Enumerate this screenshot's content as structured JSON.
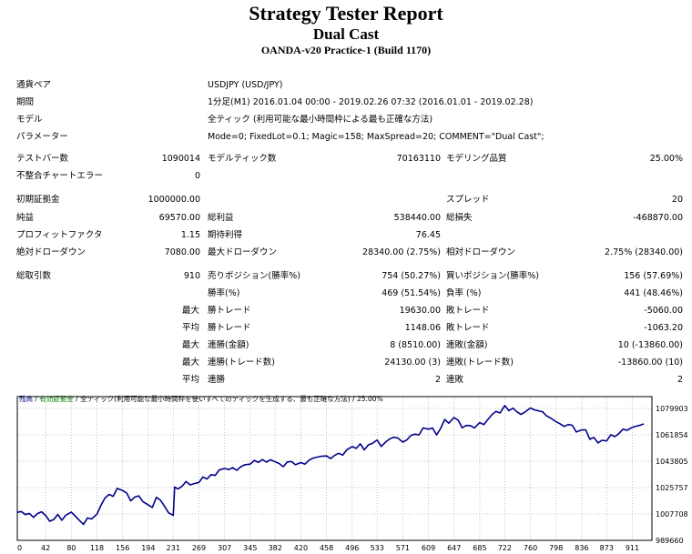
{
  "header": {
    "title": "Strategy Tester Report",
    "ea_name": "Dual Cast",
    "server": "OANDA-v20 Practice-1 (Build 1170)"
  },
  "settings": [
    {
      "label": "通貨ペア",
      "value": "USDJPY (USD/JPY)"
    },
    {
      "label": "期間",
      "value": "1分足(M1) 2016.01.04 00:00 - 2019.02.26 07:32 (2016.01.01 - 2019.02.28)"
    },
    {
      "label": "モデル",
      "value": "全ティック (利用可能な最小時間枠による最も正確な方法)"
    },
    {
      "label": "パラメーター",
      "value": "Mode=0; FixedLot=0.1; Magic=158; MaxSpread=20; COMMENT=\"Dual Cast\";"
    }
  ],
  "rows": {
    "bars": {
      "label": "テストバー数",
      "value": "1090014"
    },
    "ticks": {
      "label": "モデルティック数",
      "value": "70163110"
    },
    "quality": {
      "label": "モデリング品質",
      "value": "25.00%"
    },
    "errors": {
      "label": "不整合チャートエラー",
      "value": "0"
    },
    "deposit": {
      "label": "初期証拠金",
      "value": "1000000.00"
    },
    "spread": {
      "label": "スプレッド",
      "value": "20"
    },
    "net_profit": {
      "label": "純益",
      "value": "69570.00"
    },
    "gross_profit": {
      "label": "総利益",
      "value": "538440.00"
    },
    "gross_loss": {
      "label": "総損失",
      "value": "-468870.00"
    },
    "profit_factor": {
      "label": "プロフィットファクタ",
      "value": "1.15"
    },
    "expected_payoff": {
      "label": "期待利得",
      "value": "76.45"
    },
    "abs_dd": {
      "label": "絶対ドローダウン",
      "value": "7080.00"
    },
    "max_dd": {
      "label": "最大ドローダウン",
      "value": "28340.00 (2.75%)"
    },
    "rel_dd": {
      "label": "相対ドローダウン",
      "value": "2.75% (28340.00)"
    },
    "total_trades": {
      "label": "総取引数",
      "value": "910"
    },
    "short": {
      "label": "売りポジション(勝率%)",
      "value": "754 (50.27%)"
    },
    "long": {
      "label": "買いポジション(勝率%)",
      "value": "156 (57.69%)"
    },
    "win_rate": {
      "label": "勝率(%)",
      "value": "469 (51.54%)"
    },
    "loss_rate": {
      "label": "負率 (%)",
      "value": "441 (48.46%)"
    },
    "largest_win": {
      "prefix": "最大",
      "label": "勝トレード",
      "value": "19630.00"
    },
    "largest_loss": {
      "label": "敗トレード",
      "value": "-5060.00"
    },
    "avg_win": {
      "prefix": "平均",
      "label": "勝トレード",
      "value": "1148.06"
    },
    "avg_loss": {
      "label": "敗トレード",
      "value": "-1063.20"
    },
    "max_consec_wins": {
      "prefix": "最大",
      "label": "連勝(金額)",
      "value": "8 (8510.00)"
    },
    "max_consec_losses": {
      "label": "連敗(金額)",
      "value": "10 (-13860.00)"
    },
    "max_consec_profit": {
      "prefix": "最大",
      "label": "連勝(トレード数)",
      "value": "24130.00 (3)"
    },
    "max_consec_loss": {
      "label": "連敗(トレード数)",
      "value": "-13860.00 (10)"
    },
    "avg_consec_wins": {
      "prefix": "平均",
      "label": "連勝",
      "value": "2"
    },
    "avg_consec_losses": {
      "label": "連敗",
      "value": "2"
    }
  },
  "chart_data": {
    "type": "line",
    "legend": {
      "balance": "残高",
      "sep1": " / ",
      "margin": "有効証拠金",
      "sep2": " / ",
      "model": "全ティック(利用可能な最小時間枠を使いすべてのティックを生成する、最も正確な方法)",
      "sep3": " / ",
      "quality": "25.00%"
    },
    "colors": {
      "balance": "#00008b",
      "margin": "#008000",
      "grid": "#c0c0c0",
      "axis": "#000000"
    },
    "x_ticks": [
      "0",
      "42",
      "80",
      "118",
      "156",
      "194",
      "231",
      "269",
      "307",
      "345",
      "382",
      "420",
      "458",
      "496",
      "533",
      "571",
      "609",
      "647",
      "685",
      "722",
      "760",
      "798",
      "836",
      "873",
      "911"
    ],
    "y_ticks": [
      "1079903",
      "1061854",
      "1043805",
      "1025757",
      "1007708",
      "989660"
    ],
    "ylim": [
      989660,
      1088000
    ],
    "xlim": [
      0,
      940
    ],
    "series": [
      {
        "name": "残高",
        "x": [
          0,
          6,
          12,
          18,
          24,
          30,
          36,
          42,
          48,
          54,
          60,
          66,
          72,
          80,
          86,
          92,
          98,
          104,
          110,
          118,
          124,
          130,
          136,
          142,
          148,
          156,
          162,
          168,
          174,
          180,
          186,
          194,
          200,
          206,
          212,
          218,
          224,
          231,
          233,
          238,
          244,
          250,
          256,
          262,
          269,
          275,
          281,
          287,
          293,
          299,
          307,
          313,
          319,
          325,
          331,
          337,
          345,
          351,
          357,
          363,
          369,
          375,
          382,
          388,
          394,
          400,
          406,
          412,
          420,
          426,
          432,
          438,
          444,
          450,
          458,
          464,
          470,
          476,
          482,
          488,
          496,
          502,
          508,
          514,
          520,
          526,
          533,
          539,
          545,
          551,
          557,
          563,
          571,
          577,
          583,
          589,
          595,
          601,
          609,
          615,
          621,
          627,
          633,
          639,
          647,
          653,
          659,
          665,
          671,
          677,
          685,
          691,
          697,
          703,
          709,
          715,
          722,
          728,
          734,
          740,
          746,
          752,
          760,
          766,
          772,
          778,
          784,
          790,
          798,
          804,
          810,
          816,
          822,
          828,
          836,
          842,
          848,
          854,
          860,
          866,
          873,
          879,
          885,
          891,
          897,
          903,
          911,
          917,
          923,
          928
        ],
        "values": [
          1008800,
          1009400,
          1007300,
          1008100,
          1005400,
          1008000,
          1009200,
          1006700,
          1002700,
          1003900,
          1007400,
          1003400,
          1006900,
          1009000,
          1006200,
          1003300,
          1000600,
          1005000,
          1004300,
          1007600,
          1013600,
          1018700,
          1021100,
          1019800,
          1025200,
          1023700,
          1022100,
          1016700,
          1019300,
          1020100,
          1016200,
          1013900,
          1012200,
          1019100,
          1017200,
          1013100,
          1008500,
          1006800,
          1026200,
          1024800,
          1026600,
          1029900,
          1027600,
          1028500,
          1029300,
          1033000,
          1031700,
          1034600,
          1034100,
          1037800,
          1038900,
          1038100,
          1039400,
          1037600,
          1040000,
          1041400,
          1041800,
          1044400,
          1043000,
          1044900,
          1043200,
          1044800,
          1043400,
          1042200,
          1040100,
          1043300,
          1043600,
          1041400,
          1042900,
          1041800,
          1044500,
          1045900,
          1046600,
          1047200,
          1047400,
          1045600,
          1047800,
          1049200,
          1048000,
          1051500,
          1053800,
          1052600,
          1055700,
          1051600,
          1055000,
          1056000,
          1058300,
          1053900,
          1056700,
          1058900,
          1060200,
          1059800,
          1056900,
          1058400,
          1061500,
          1062300,
          1061800,
          1066600,
          1065700,
          1066500,
          1061800,
          1066200,
          1072400,
          1069800,
          1073700,
          1071900,
          1066700,
          1068300,
          1068200,
          1066600,
          1070300,
          1068800,
          1072400,
          1075600,
          1077900,
          1076800,
          1081900,
          1078400,
          1080100,
          1077600,
          1075800,
          1077500,
          1080200,
          1079000,
          1078300,
          1077600,
          1074800,
          1073300,
          1070800,
          1069400,
          1067600,
          1068900,
          1068400,
          1063800,
          1065300,
          1065200,
          1058800,
          1060100,
          1056300,
          1058100,
          1057700,
          1061900,
          1060600,
          1062700,
          1065700,
          1065000,
          1067000,
          1067800,
          1068500,
          1069300
        ]
      }
    ]
  }
}
